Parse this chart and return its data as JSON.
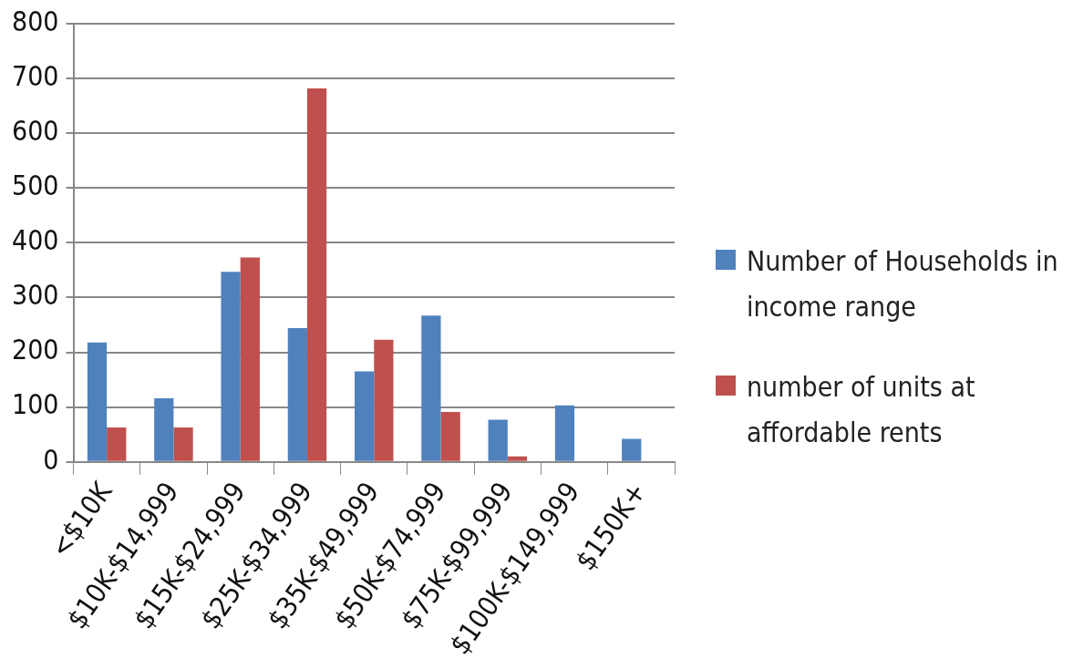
{
  "chart_data": {
    "type": "bar",
    "categories": [
      "<$10K",
      "$10K-$14,999",
      "$15K-$24,999",
      "$25K-$34,999",
      "$35K-$49,999",
      "$50K-$74,999",
      "$75K-$99,999",
      "$100K-$149,999",
      "$150K+"
    ],
    "series": [
      {
        "name": "Number of Households in income range",
        "color": "#4f81bd",
        "values": [
          218,
          116,
          347,
          244,
          165,
          267,
          77,
          103,
          42
        ]
      },
      {
        "name": "number of units at affordable rents",
        "color": "#c0504d",
        "values": [
          63,
          63,
          373,
          682,
          223,
          91,
          10,
          null,
          null
        ]
      }
    ],
    "ylim": [
      0,
      800
    ],
    "yticks": [
      0,
      100,
      200,
      300,
      400,
      500,
      600,
      700,
      800
    ],
    "grid": "y",
    "legend": "right"
  }
}
